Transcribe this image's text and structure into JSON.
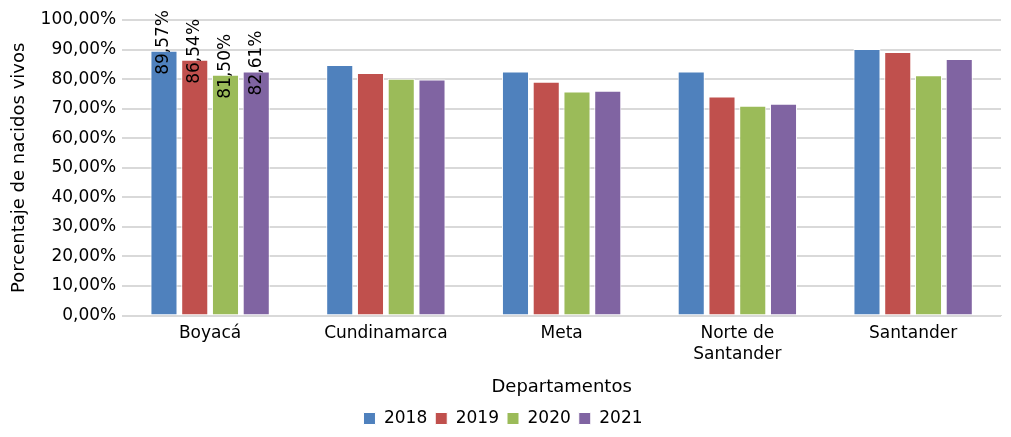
{
  "chart_data": {
    "type": "bar",
    "xlabel": "Departamentos",
    "ylabel": "Porcentaje de nacidos vivos",
    "categories": [
      "Boyacá",
      "Cundinamarca",
      "Meta",
      "Norte de Santander",
      "Santander"
    ],
    "series": [
      {
        "name": "2018",
        "color": "#4f81bd",
        "values": [
          89.57,
          84.8,
          82.6,
          82.6,
          90.2
        ],
        "value_labels": [
          "89,57%",
          null,
          null,
          null,
          null
        ]
      },
      {
        "name": "2019",
        "color": "#c0504d",
        "values": [
          86.54,
          82.1,
          79.1,
          74.1,
          89.2
        ],
        "value_labels": [
          "86,54%",
          null,
          null,
          null,
          null
        ]
      },
      {
        "name": "2020",
        "color": "#9bbb59",
        "values": [
          81.5,
          80.1,
          75.8,
          71.0,
          81.3
        ],
        "value_labels": [
          "81,50%",
          null,
          null,
          null,
          null
        ]
      },
      {
        "name": "2021",
        "color": "#8064a2",
        "values": [
          82.61,
          79.9,
          76.1,
          71.7,
          86.8
        ],
        "value_labels": [
          "82,61%",
          null,
          null,
          null,
          null
        ]
      }
    ],
    "ylim": [
      0,
      100
    ],
    "yticks": [
      {
        "value": 0,
        "label": "0,00%"
      },
      {
        "value": 10,
        "label": "10,00%"
      },
      {
        "value": 20,
        "label": "20,00%"
      },
      {
        "value": 30,
        "label": "30,00%"
      },
      {
        "value": 40,
        "label": "40,00%"
      },
      {
        "value": 50,
        "label": "50,00%"
      },
      {
        "value": 60,
        "label": "60,00%"
      },
      {
        "value": 70,
        "label": "70,00%"
      },
      {
        "value": 80,
        "label": "80,00%"
      },
      {
        "value": 90,
        "label": "90,00%"
      },
      {
        "value": 100,
        "label": "100,00%"
      }
    ],
    "grid": "y",
    "legend": "bottom"
  }
}
